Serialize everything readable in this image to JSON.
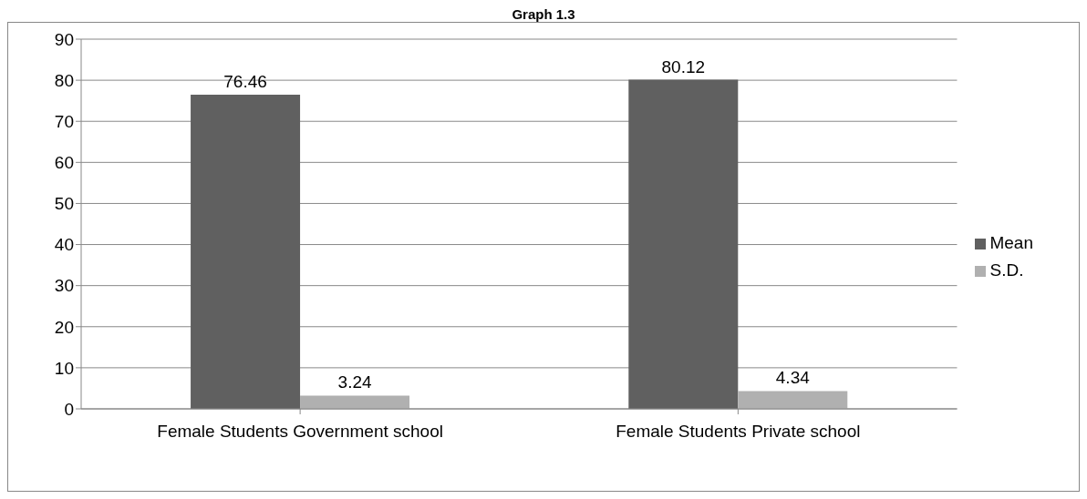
{
  "chart_data": {
    "type": "bar",
    "title": "Graph 1.3",
    "categories": [
      "Female Students Government school",
      "Female Students Private school"
    ],
    "series": [
      {
        "name": "Mean",
        "color": "#606060",
        "values": [
          76.46,
          80.12
        ]
      },
      {
        "name": "S.D.",
        "color": "#b0b0b0",
        "values": [
          3.24,
          4.34
        ]
      }
    ],
    "ylim": [
      0,
      90
    ],
    "yticks": [
      0,
      10,
      20,
      30,
      40,
      50,
      60,
      70,
      80,
      90
    ],
    "grid": "y",
    "legend": "right",
    "data_labels": true
  }
}
